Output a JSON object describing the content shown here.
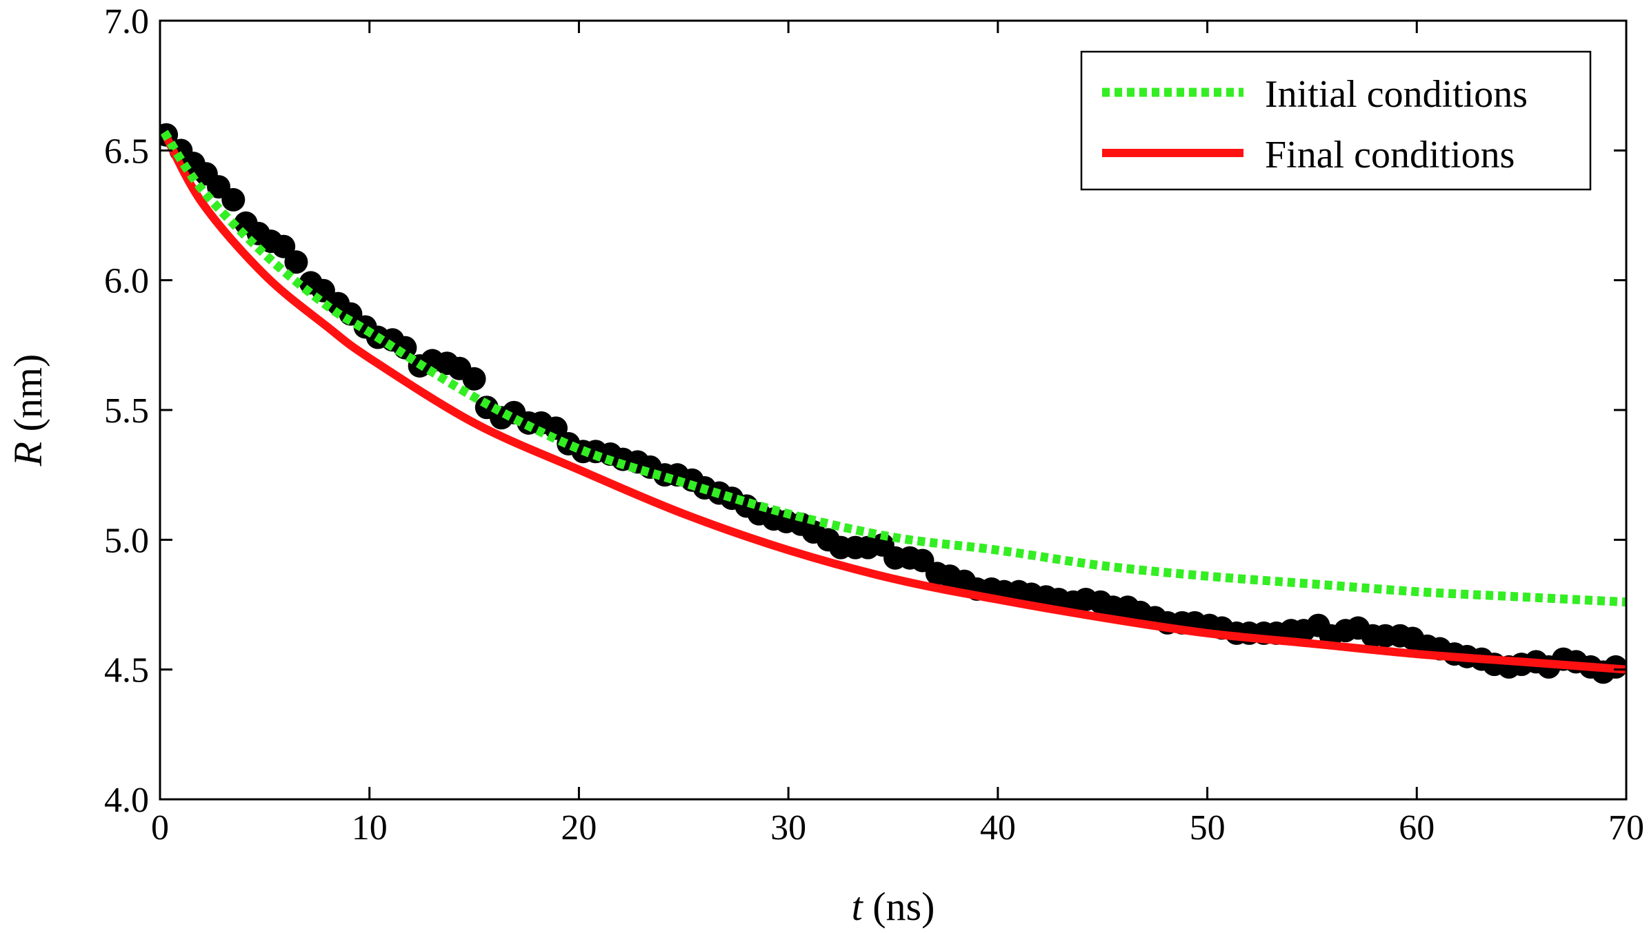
{
  "chart_data": {
    "type": "line",
    "xlabel": {
      "symbol": "t",
      "unit": " (ns)"
    },
    "ylabel": {
      "symbol": "R",
      "unit": " (nm)"
    },
    "xlim": [
      0,
      70
    ],
    "ylim": [
      4.0,
      7.0
    ],
    "xticks": [
      0,
      10,
      20,
      30,
      40,
      50,
      60,
      70
    ],
    "yticks": [
      4.0,
      4.5,
      5.0,
      5.5,
      6.0,
      6.5,
      7.0
    ],
    "xtick_labels": [
      "0",
      "10",
      "20",
      "30",
      "40",
      "50",
      "60",
      "70"
    ],
    "ytick_labels": [
      "4.0",
      "4.5",
      "5.0",
      "5.5",
      "6.0",
      "6.5",
      "7.0"
    ],
    "grid": false,
    "legend": {
      "position": "top-right",
      "entries": [
        "Initial conditions",
        "Final conditions"
      ]
    },
    "series": [
      {
        "name": "Initial conditions",
        "type": "line",
        "style": "dotted",
        "color": "#33ee22",
        "x": [
          0.2,
          2,
          5,
          8,
          10,
          15,
          20,
          25,
          30,
          35,
          40,
          45,
          50,
          55,
          60,
          65,
          70
        ],
        "y": [
          6.57,
          6.35,
          6.1,
          5.9,
          5.8,
          5.55,
          5.35,
          5.22,
          5.1,
          5.01,
          4.96,
          4.9,
          4.86,
          4.83,
          4.8,
          4.78,
          4.76
        ]
      },
      {
        "name": "Final conditions",
        "type": "line",
        "style": "solid",
        "color": "#ff1111",
        "x": [
          0.2,
          2,
          5,
          8,
          10,
          15,
          20,
          25,
          30,
          35,
          40,
          45,
          50,
          55,
          60,
          65,
          70
        ],
        "y": [
          6.57,
          6.3,
          6.02,
          5.82,
          5.7,
          5.45,
          5.27,
          5.1,
          4.96,
          4.85,
          4.77,
          4.7,
          4.64,
          4.6,
          4.56,
          4.53,
          4.5
        ]
      },
      {
        "type": "scatter",
        "color": "#000000",
        "x": [
          0.3,
          1.0,
          1.6,
          2.2,
          2.8,
          3.5,
          4.1,
          4.7,
          5.3,
          5.9,
          6.5,
          7.2,
          7.8,
          8.5,
          9.1,
          9.8,
          10.4,
          11.1,
          11.7,
          12.4,
          13.0,
          13.7,
          14.3,
          15.0,
          15.6,
          16.3,
          16.9,
          17.6,
          18.2,
          18.9,
          19.5,
          20.2,
          20.8,
          21.5,
          22.1,
          22.8,
          23.4,
          24.1,
          24.7,
          25.4,
          26.0,
          26.7,
          27.3,
          28.0,
          28.6,
          29.3,
          29.9,
          30.6,
          31.2,
          31.9,
          32.5,
          33.2,
          33.8,
          34.5,
          35.1,
          35.8,
          36.4,
          37.1,
          37.7,
          38.4,
          39.0,
          39.7,
          40.3,
          41.0,
          41.6,
          42.3,
          42.9,
          43.6,
          44.2,
          44.9,
          45.5,
          46.2,
          46.8,
          47.5,
          48.1,
          48.8,
          49.4,
          50.1,
          50.7,
          51.4,
          52.0,
          52.7,
          53.3,
          54.0,
          54.6,
          55.3,
          55.9,
          56.6,
          57.2,
          57.9,
          58.5,
          59.2,
          59.8,
          60.5,
          61.1,
          61.8,
          62.4,
          63.1,
          63.7,
          64.4,
          65.0,
          65.7,
          66.3,
          67.0,
          67.6,
          68.3,
          68.9,
          69.5
        ],
        "y": [
          6.56,
          6.5,
          6.45,
          6.41,
          6.36,
          6.31,
          6.22,
          6.18,
          6.15,
          6.13,
          6.07,
          5.99,
          5.96,
          5.91,
          5.87,
          5.82,
          5.78,
          5.77,
          5.74,
          5.67,
          5.69,
          5.68,
          5.66,
          5.62,
          5.51,
          5.47,
          5.49,
          5.45,
          5.45,
          5.43,
          5.37,
          5.34,
          5.34,
          5.33,
          5.31,
          5.3,
          5.28,
          5.25,
          5.25,
          5.23,
          5.2,
          5.18,
          5.16,
          5.13,
          5.1,
          5.08,
          5.07,
          5.06,
          5.03,
          5.0,
          4.97,
          4.97,
          4.97,
          4.98,
          4.93,
          4.93,
          4.92,
          4.87,
          4.86,
          4.84,
          4.81,
          4.81,
          4.8,
          4.8,
          4.79,
          4.78,
          4.77,
          4.76,
          4.77,
          4.76,
          4.74,
          4.74,
          4.72,
          4.7,
          4.68,
          4.68,
          4.68,
          4.67,
          4.66,
          4.64,
          4.64,
          4.64,
          4.64,
          4.65,
          4.65,
          4.67,
          4.63,
          4.65,
          4.66,
          4.63,
          4.63,
          4.63,
          4.62,
          4.59,
          4.58,
          4.56,
          4.55,
          4.54,
          4.52,
          4.51,
          4.52,
          4.53,
          4.51,
          4.54,
          4.53,
          4.51,
          4.49,
          4.51
        ]
      }
    ]
  }
}
